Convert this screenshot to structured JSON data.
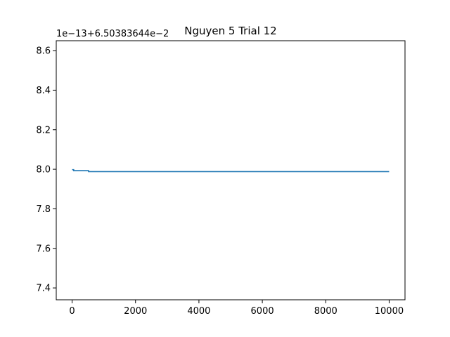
{
  "chart_data": {
    "type": "line",
    "title": "Nguyen 5 Trial 12",
    "xlabel": "",
    "ylabel": "",
    "offset_label": "1e−13+6.50383644e−2",
    "xlim": [
      -500,
      10500
    ],
    "ylim": [
      7.34,
      8.65
    ],
    "x_ticks": [
      0,
      2000,
      4000,
      6000,
      8000,
      10000
    ],
    "x_tick_labels": [
      "0",
      "2000",
      "4000",
      "6000",
      "8000",
      "10000"
    ],
    "y_ticks": [
      7.4,
      7.6,
      7.8,
      8.0,
      8.2,
      8.4,
      8.6
    ],
    "y_tick_labels": [
      "7.4",
      "7.6",
      "7.8",
      "8.0",
      "8.2",
      "8.4",
      "8.6"
    ],
    "grid": false,
    "series": [
      {
        "color": "#1f77b4",
        "x": [
          0,
          50,
          50,
          520,
          520,
          10000
        ],
        "y": [
          7.998,
          7.998,
          7.993,
          7.993,
          7.988,
          7.988
        ]
      }
    ]
  }
}
